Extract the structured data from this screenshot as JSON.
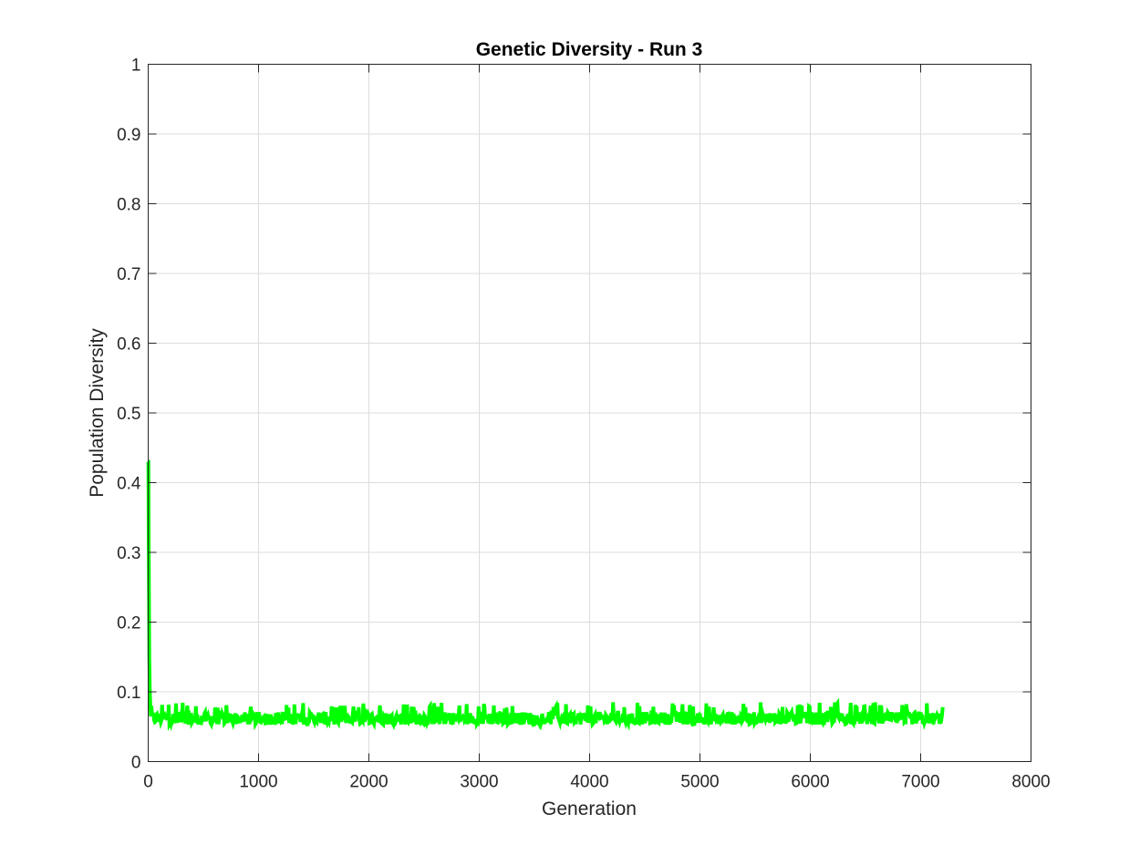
{
  "chart_data": {
    "type": "line",
    "title": "Genetic Diversity - Run 3",
    "xlabel": "Generation",
    "ylabel": "Population Diversity",
    "xlim": [
      0,
      8000
    ],
    "ylim": [
      0,
      1
    ],
    "xticks": [
      0,
      1000,
      2000,
      3000,
      4000,
      5000,
      6000,
      7000,
      8000
    ],
    "xtick_labels": [
      "0",
      "1000",
      "2000",
      "3000",
      "4000",
      "5000",
      "6000",
      "7000",
      "8000"
    ],
    "yticks": [
      0,
      0.1,
      0.2,
      0.3,
      0.4,
      0.5,
      0.6,
      0.7,
      0.8,
      0.9,
      1
    ],
    "ytick_labels": [
      "0",
      "0.1",
      "0.2",
      "0.3",
      "0.4",
      "0.5",
      "0.6",
      "0.7",
      "0.8",
      "0.9",
      "1"
    ],
    "grid": true,
    "series": [
      {
        "color": "#00ff00",
        "description_points": {
          "x": [
            0,
            2,
            5,
            10,
            15,
            20,
            30,
            50,
            100,
            200,
            300,
            500,
            1000,
            2000,
            3000,
            4000,
            5000,
            6000,
            7000,
            7200
          ],
          "y": [
            0.43,
            0.43,
            0.3,
            0.15,
            0.1,
            0.08,
            0.065,
            0.062,
            0.06,
            0.065,
            0.06,
            0.062,
            0.06,
            0.062,
            0.063,
            0.062,
            0.06,
            0.062,
            0.061,
            0.06
          ]
        },
        "steady_state": {
          "x_start": 20,
          "x_end": 7200,
          "low": 0.053,
          "high": 0.085,
          "mean": 0.062
        }
      }
    ]
  }
}
